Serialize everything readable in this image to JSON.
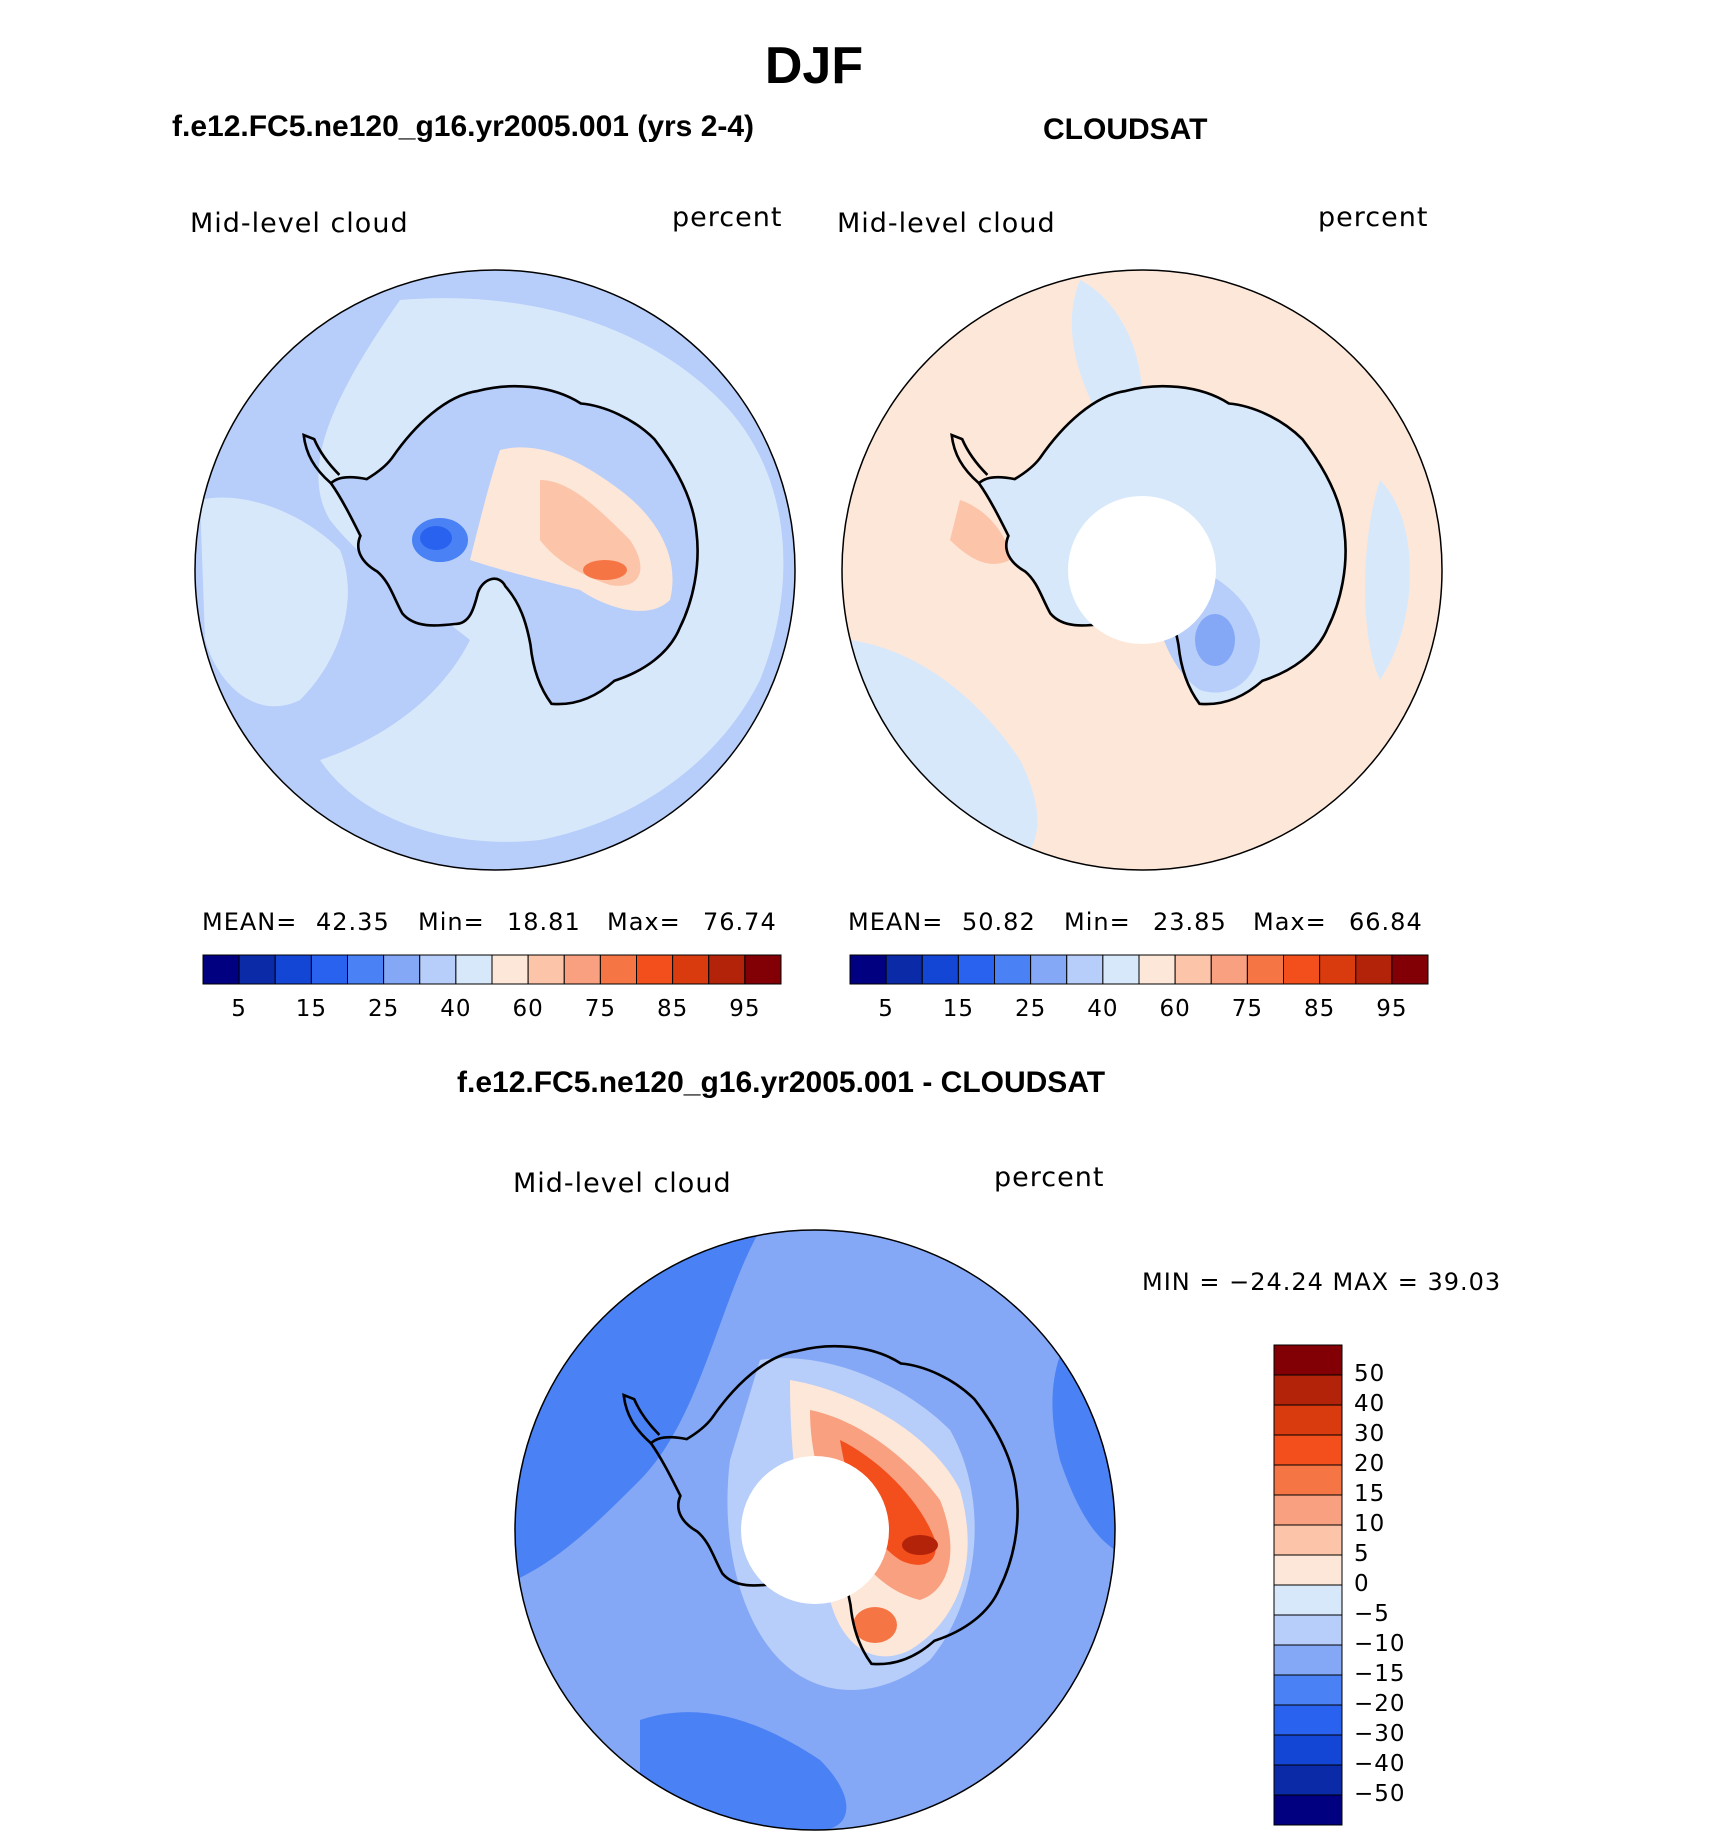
{
  "page": {
    "title": "DJF",
    "model_title": "f.e12.FC5.ne120_g16.yr2005.001 (yrs 2-4)",
    "obs_title": "CLOUDSAT",
    "diff_title": "f.e12.FC5.ne120_g16.yr2005.001 - CLOUDSAT"
  },
  "panels": {
    "model": {
      "variable": "Mid-level cloud",
      "units": "percent",
      "mean_label": "MEAN=",
      "mean": "42.35",
      "min_label": "Min=",
      "min": "18.81",
      "max_label": "Max=",
      "max": "76.74"
    },
    "obs": {
      "variable": "Mid-level cloud",
      "units": "percent",
      "mean_label": "MEAN=",
      "mean": "50.82",
      "min_label": "Min=",
      "min": "23.85",
      "max_label": "Max=",
      "max": "66.84"
    },
    "diff": {
      "variable": "Mid-level cloud",
      "units": "percent",
      "minmax": "MIN = −24.24 MAX =   39.03"
    }
  },
  "colors": {
    "abs_scale": [
      "#000080",
      "#0a2aa8",
      "#1446d6",
      "#2a62f0",
      "#4a82f5",
      "#85a8f6",
      "#b7cdfa",
      "#d8e8fb",
      "#fde7d9",
      "#fcc4a9",
      "#f9a080",
      "#f67545",
      "#f24f1d",
      "#d93a0e",
      "#b3230a",
      "#820005"
    ],
    "diff_scale": [
      "#000080",
      "#0a2aa8",
      "#1446d6",
      "#2a62f0",
      "#4a82f5",
      "#85a8f6",
      "#b7cdfa",
      "#d8e8fb",
      "#fde7d9",
      "#fcc4a9",
      "#f9a080",
      "#f67545",
      "#f24f1d",
      "#d93a0e",
      "#b3230a",
      "#820005"
    ],
    "coast": "#000000"
  },
  "chart_data": [
    {
      "type": "heatmap",
      "projection": "south-polar-stereographic",
      "title": "f.e12.FC5.ne120_g16.yr2005.001 (yrs 2-4)",
      "field": "Mid-level cloud",
      "units": "percent",
      "mean": 42.35,
      "min": 18.81,
      "max": 76.74,
      "colorbar_ticks": [
        "5",
        "15",
        "25",
        "40",
        "60",
        "75",
        "85",
        "95"
      ],
      "regions": [
        {
          "name": "ocean-background",
          "value": 33
        },
        {
          "name": "outer-ring-pacific",
          "value": 28
        },
        {
          "name": "coastal-ring",
          "value": 38
        },
        {
          "name": "east-antarctic-plateau-high",
          "value": 62
        },
        {
          "name": "plateau-max",
          "value": 76
        },
        {
          "name": "west-antarctica-low",
          "value": 18
        }
      ]
    },
    {
      "type": "heatmap",
      "projection": "south-polar-stereographic",
      "title": "CLOUDSAT",
      "field": "Mid-level cloud",
      "units": "percent",
      "mean": 50.82,
      "min": 23.85,
      "max": 66.84,
      "colorbar_ticks": [
        "5",
        "15",
        "25",
        "40",
        "60",
        "75",
        "85",
        "95"
      ],
      "regions": [
        {
          "name": "ocean-background",
          "value": 52
        },
        {
          "name": "continent",
          "value": 38
        },
        {
          "name": "continent-low",
          "value": 25
        },
        {
          "name": "outer-patches",
          "value": 40
        },
        {
          "name": "peninsula-high",
          "value": 62
        }
      ]
    },
    {
      "type": "heatmap",
      "projection": "south-polar-stereographic",
      "title": "f.e12.FC5.ne120_g16.yr2005.001 - CLOUDSAT",
      "field": "Mid-level cloud",
      "units": "percent",
      "min": -24.24,
      "max": 39.03,
      "colorbar_ticks": [
        "50",
        "40",
        "30",
        "20",
        "15",
        "10",
        "5",
        "0",
        "−5",
        "−10",
        "−15",
        "−20",
        "−30",
        "−40",
        "−50"
      ],
      "regions": [
        {
          "name": "ocean-background",
          "value": -15
        },
        {
          "name": "ocean-strong-negative",
          "value": -24
        },
        {
          "name": "east-antarctica-positive",
          "value": 20
        },
        {
          "name": "east-antarctica-max",
          "value": 39
        },
        {
          "name": "coastal-ring",
          "value": -5
        }
      ]
    }
  ]
}
